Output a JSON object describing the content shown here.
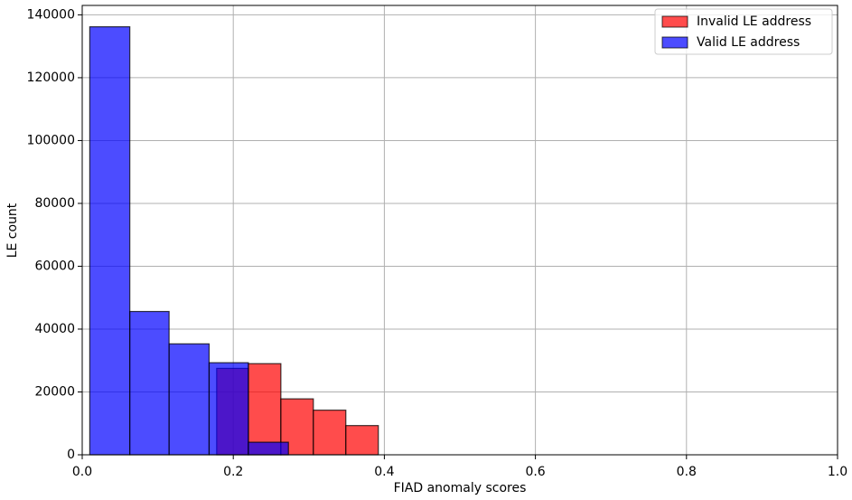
{
  "chart_data": {
    "type": "histogram",
    "xlabel": "FIAD anomaly scores",
    "ylabel": "LE count",
    "series": [
      {
        "name": "Invalid LE address",
        "color": "#ff0000",
        "bins": [
          0.178,
          0.22,
          0.263,
          0.306,
          0.349,
          0.392
        ],
        "values": [
          27500,
          29000,
          17800,
          14200,
          9300
        ]
      },
      {
        "name": "Valid LE address",
        "color": "#0000ff",
        "bins": [
          0.01,
          0.063,
          0.115,
          0.168,
          0.22,
          0.273
        ],
        "values": [
          136200,
          45600,
          35300,
          29300,
          4000
        ]
      }
    ],
    "xlim": [
      0,
      1
    ],
    "ylim": [
      0,
      143000
    ],
    "xticks": [
      {
        "value": 0,
        "label": "0.0"
      },
      0.2,
      0.4,
      0.6,
      0.8,
      {
        "value": 1,
        "label": "1.0"
      }
    ],
    "yticks": [
      0,
      20000,
      40000,
      60000,
      80000,
      100000,
      120000,
      140000
    ],
    "grid": true,
    "legend": "upper right"
  }
}
